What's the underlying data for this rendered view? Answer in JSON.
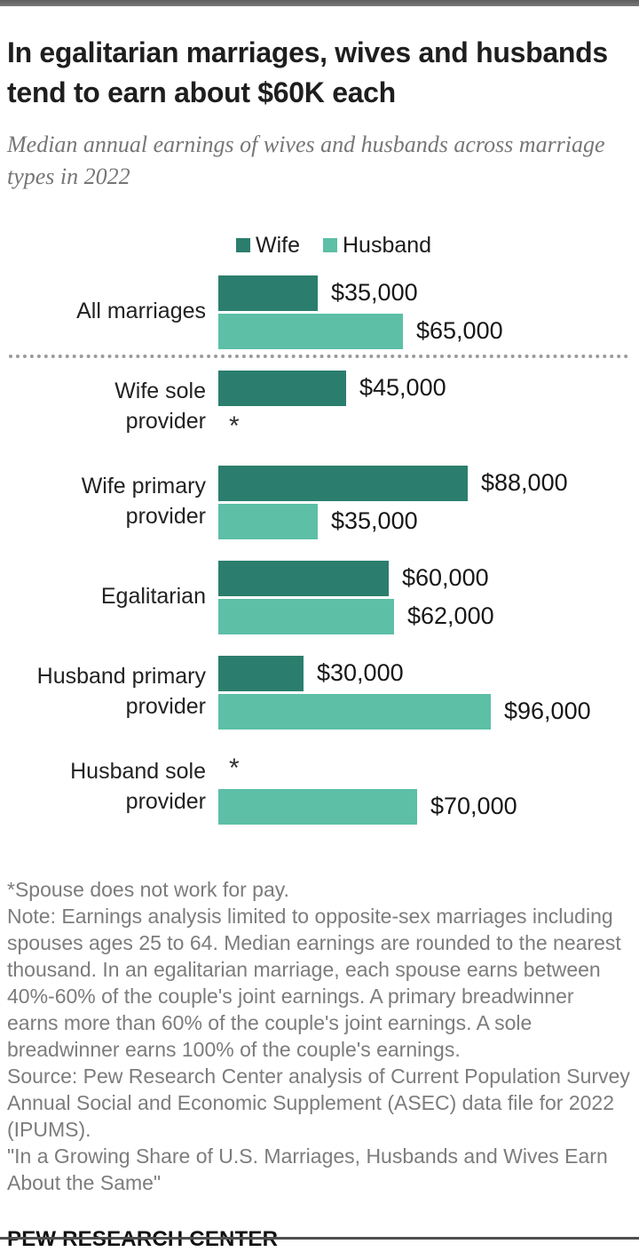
{
  "window": {
    "top_strip_color": "#6b6b6b",
    "bottom_line_color": "#4f4f4f",
    "background": "#ffffff"
  },
  "header": {
    "title": "In egalitarian marriages, wives and husbands tend to earn about $60K each",
    "subtitle": "Median annual earnings of wives and husbands across marriage types in 2022"
  },
  "chart_data": {
    "type": "bar",
    "orientation": "horizontal",
    "legend_position": "top",
    "grid": false,
    "axis_max": 96000,
    "unit": "USD",
    "series_meta": [
      {
        "name": "Wife",
        "color": "#2b7e6d"
      },
      {
        "name": "Husband",
        "color": "#5cbfa6"
      }
    ],
    "categories": [
      "All marriages",
      "Wife sole provider",
      "Wife primary provider",
      "Egalitarian",
      "Husband primary provider",
      "Husband sole provider"
    ],
    "series": [
      {
        "name": "Wife",
        "values": [
          35000,
          45000,
          88000,
          60000,
          30000,
          null
        ]
      },
      {
        "name": "Husband",
        "values": [
          65000,
          null,
          35000,
          62000,
          96000,
          70000
        ]
      }
    ],
    "no_bar_marker": "*",
    "groups": [
      {
        "label_lines": [
          "All marriages"
        ],
        "separator_after": true,
        "bars": [
          {
            "series": "Wife",
            "value": 35000,
            "label": "$35,000"
          },
          {
            "series": "Husband",
            "value": 65000,
            "label": "$65,000"
          }
        ]
      },
      {
        "label_lines": [
          "Wife sole",
          "provider"
        ],
        "bars": [
          {
            "series": "Wife",
            "value": 45000,
            "label": "$45,000"
          },
          {
            "series": "Husband",
            "value": null,
            "label": "*"
          }
        ]
      },
      {
        "label_lines": [
          "Wife primary",
          "provider"
        ],
        "bars": [
          {
            "series": "Wife",
            "value": 88000,
            "label": "$88,000"
          },
          {
            "series": "Husband",
            "value": 35000,
            "label": "$35,000"
          }
        ]
      },
      {
        "label_lines": [
          "Egalitarian"
        ],
        "bars": [
          {
            "series": "Wife",
            "value": 60000,
            "label": "$60,000"
          },
          {
            "series": "Husband",
            "value": 62000,
            "label": "$62,000"
          }
        ]
      },
      {
        "label_lines": [
          "Husband primary",
          "provider"
        ],
        "bars": [
          {
            "series": "Wife",
            "value": 30000,
            "label": "$30,000"
          },
          {
            "series": "Husband",
            "value": 96000,
            "label": "$96,000"
          }
        ]
      },
      {
        "label_lines": [
          "Husband sole",
          "provider"
        ],
        "bars": [
          {
            "series": "Wife",
            "value": null,
            "label": "*"
          },
          {
            "series": "Husband",
            "value": 70000,
            "label": "$70,000"
          }
        ]
      }
    ]
  },
  "notes": {
    "asterisk": "*Spouse does not work for pay.",
    "note": "Note: Earnings analysis limited to opposite-sex marriages including spouses ages 25 to 64. Median earnings are rounded to the nearest thousand. In an egalitarian marriage, each spouse earns between 40%-60% of the couple's joint earnings. A primary breadwinner earns more than 60% of the couple's joint earnings. A sole breadwinner earns 100% of the couple's earnings.",
    "source": "Source: Pew Research Center analysis of Current Population Survey Annual Social and Economic Supplement (ASEC) data file for 2022 (IPUMS).",
    "quote": "\"In a Growing Share of U.S. Marriages, Husbands and Wives Earn About the Same\""
  },
  "footer": {
    "brand": "PEW RESEARCH CENTER"
  }
}
